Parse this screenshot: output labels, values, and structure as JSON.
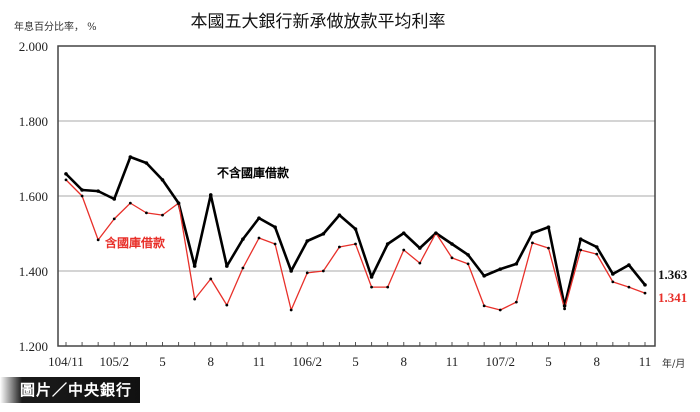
{
  "title": "本國五大銀行新承做放款平均利率",
  "y_unit_label": "年息百分比率， %",
  "x_unit_label": "年/月",
  "credit": "圖片／中央銀行",
  "colors": {
    "series_excl": "#000000",
    "series_incl": "#e8302a",
    "grid": "#aaaaaa",
    "frame": "#444444"
  },
  "chart_data": {
    "type": "line",
    "title": "本國五大銀行新承做放款平均利率",
    "xlabel": "年/月",
    "ylabel": "年息百分比率， %",
    "ylim": [
      1.2,
      2.0
    ],
    "yticks": [
      "1.200",
      "1.400",
      "1.600",
      "1.800",
      "2.000"
    ],
    "grid": true,
    "x": [
      "104/11",
      "104/12",
      "105/1",
      "105/2",
      "105/3",
      "105/4",
      "105/5",
      "105/6",
      "105/7",
      "105/8",
      "105/9",
      "105/10",
      "105/11",
      "105/12",
      "106/1",
      "106/2",
      "106/3",
      "106/4",
      "106/5",
      "106/6",
      "106/7",
      "106/8",
      "106/9",
      "106/10",
      "106/11",
      "106/12",
      "107/1",
      "107/2",
      "107/3",
      "107/4",
      "107/5",
      "107/6",
      "107/7",
      "107/8",
      "107/9",
      "107/10",
      "107/11"
    ],
    "xtick_labels": [
      {
        "index": 0,
        "label": "104/11"
      },
      {
        "index": 3,
        "label": "105/2"
      },
      {
        "index": 6,
        "label": "5"
      },
      {
        "index": 9,
        "label": "8"
      },
      {
        "index": 12,
        "label": "11"
      },
      {
        "index": 15,
        "label": "106/2"
      },
      {
        "index": 18,
        "label": "5"
      },
      {
        "index": 21,
        "label": "8"
      },
      {
        "index": 24,
        "label": "11"
      },
      {
        "index": 27,
        "label": "107/2"
      },
      {
        "index": 30,
        "label": "5"
      },
      {
        "index": 33,
        "label": "8"
      },
      {
        "index": 36,
        "label": "11"
      }
    ],
    "series": [
      {
        "name": "不含國庫借款",
        "color": "#000000",
        "end_label": "1.363",
        "values": [
          1.659,
          1.616,
          1.613,
          1.592,
          1.704,
          1.688,
          1.643,
          1.581,
          1.413,
          1.603,
          1.413,
          1.485,
          1.541,
          1.517,
          1.4,
          1.48,
          1.499,
          1.549,
          1.512,
          1.384,
          1.472,
          1.501,
          1.461,
          1.501,
          1.472,
          1.443,
          1.387,
          1.405,
          1.419,
          1.501,
          1.517,
          1.307,
          1.485,
          1.464,
          1.392,
          1.416,
          1.363
        ]
      },
      {
        "name": "含國庫借款",
        "color": "#e8302a",
        "end_label": "1.341",
        "values": [
          1.643,
          1.6,
          1.483,
          1.539,
          1.581,
          1.555,
          1.549,
          1.581,
          1.325,
          1.379,
          1.309,
          1.408,
          1.488,
          1.472,
          1.296,
          1.395,
          1.4,
          1.464,
          1.472,
          1.357,
          1.357,
          1.456,
          1.421,
          1.501,
          1.435,
          1.419,
          1.307,
          1.296,
          1.317,
          1.475,
          1.461,
          1.299,
          1.456,
          1.445,
          1.371,
          1.357,
          1.341
        ]
      }
    ],
    "annotations": [
      {
        "text": "不含國庫借款",
        "series": 0
      },
      {
        "text": "含國庫借款",
        "series": 1
      }
    ]
  }
}
